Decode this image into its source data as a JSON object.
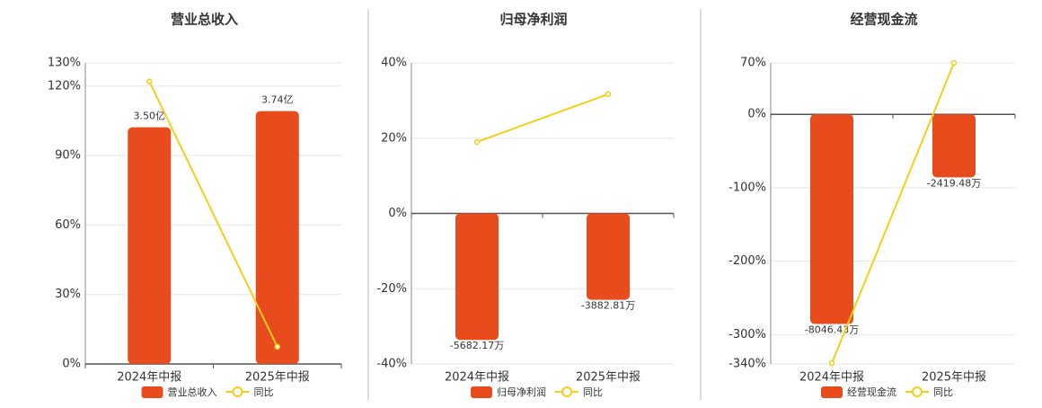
{
  "chart_data": [
    {
      "type": "bar",
      "title": "营业总收入",
      "categories": [
        "2024年中报",
        "2025年中报"
      ],
      "series": [
        {
          "name": "营业总收入",
          "color": "#e84c1c",
          "values": [
            3.5,
            3.74
          ],
          "value_labels": [
            "3.50亿",
            "3.74亿"
          ]
        },
        {
          "name": "同比",
          "color": "#f2cf1a",
          "type": "line",
          "values": [
            122,
            7.4
          ]
        }
      ],
      "ylim": [
        0,
        130
      ],
      "yticks": [
        {
          "value": 0,
          "label": "0%"
        },
        {
          "value": 30,
          "label": "30%"
        },
        {
          "value": 60,
          "label": "60%"
        },
        {
          "value": 90,
          "label": "90%"
        },
        {
          "value": 120,
          "label": "120%"
        },
        {
          "value": 130,
          "label": "130%"
        }
      ],
      "grid": true
    },
    {
      "type": "bar",
      "title": "归母净利润",
      "categories": [
        "2024年中报",
        "2025年中报"
      ],
      "series": [
        {
          "name": "归母净利润",
          "color": "#e84c1c",
          "values": [
            -5682.17,
            -3882.81
          ],
          "value_labels": [
            "-5682.17万",
            "-3882.81万"
          ]
        },
        {
          "name": "同比",
          "color": "#f2cf1a",
          "type": "line",
          "values": [
            19.0,
            31.7
          ]
        }
      ],
      "ylim": [
        -40,
        40
      ],
      "yticks": [
        {
          "value": -40,
          "label": "-40%"
        },
        {
          "value": -20,
          "label": "-20%"
        },
        {
          "value": 0,
          "label": "0%"
        },
        {
          "value": 20,
          "label": "20%"
        },
        {
          "value": 40,
          "label": "40%"
        }
      ],
      "grid": true
    },
    {
      "type": "bar",
      "title": "经营现金流",
      "categories": [
        "2024年中报",
        "2025年中报"
      ],
      "series": [
        {
          "name": "经营现金流",
          "color": "#e84c1c",
          "values": [
            -8046.43,
            -2419.48
          ],
          "value_labels": [
            "-8046.43万",
            "-2419.48万"
          ]
        },
        {
          "name": "同比",
          "color": "#f2cf1a",
          "type": "line",
          "values": [
            -339,
            70
          ]
        }
      ],
      "ylim": [
        -340,
        70
      ],
      "yticks": [
        {
          "value": -340,
          "label": "-340%"
        },
        {
          "value": -300,
          "label": "-300%"
        },
        {
          "value": -200,
          "label": "-200%"
        },
        {
          "value": -100,
          "label": "-100%"
        },
        {
          "value": 0,
          "label": "0%"
        },
        {
          "value": 70,
          "label": "70%"
        }
      ],
      "grid": true
    }
  ]
}
